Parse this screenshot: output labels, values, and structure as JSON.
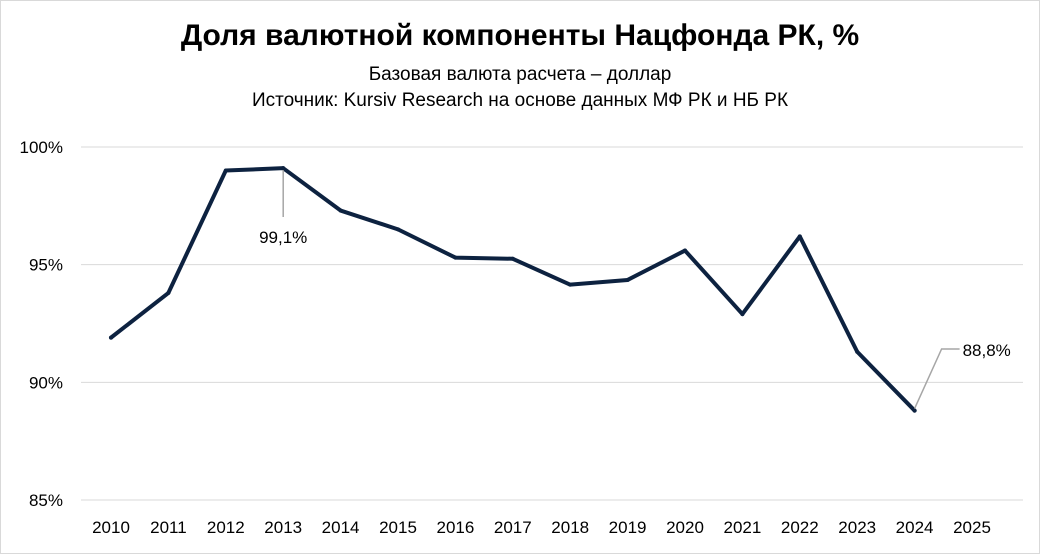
{
  "chart_data": {
    "type": "line",
    "title": "Доля валютной компоненты Нацфонда РК, %",
    "subtitle": "Базовая валюта расчета – доллар",
    "source": "Источник: Kursiv Research на основе данных МФ РК и НБ РК",
    "xlabel": "",
    "ylabel": "",
    "categories": [
      "2010",
      "2011",
      "2012",
      "2013",
      "2014",
      "2015",
      "2016",
      "2017",
      "2018",
      "2019",
      "2020",
      "2021",
      "2022",
      "2023",
      "2024",
      "2025"
    ],
    "series": [
      {
        "values": [
          91.9,
          93.8,
          99.0,
          99.1,
          97.3,
          96.5,
          95.3,
          95.25,
          94.15,
          94.35,
          95.6,
          92.9,
          96.2,
          91.3,
          88.8,
          null
        ]
      }
    ],
    "ylim": [
      85,
      100
    ],
    "yticks": [
      100,
      95,
      90,
      85
    ],
    "ytick_labels": [
      "100%",
      "95%",
      "90%",
      "85%"
    ],
    "grid": true,
    "annotations": [
      {
        "category": "2013",
        "label": "99,1%"
      },
      {
        "category": "2024",
        "label": "88,8%"
      }
    ],
    "line_color": "#0d2240",
    "grid_color": "#d9d9d9",
    "leader_color": "#a6a6a6"
  }
}
